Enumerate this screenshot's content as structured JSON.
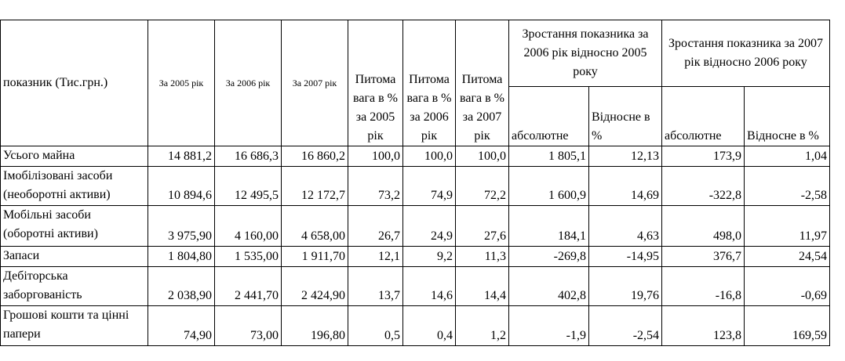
{
  "table": {
    "header": {
      "indicator": "показник (Тис.грн.)",
      "columns": [
        "За 2005 рік",
        "За 2006 рік",
        "За 2007 рік",
        "Питома вага в % за 2005 рік",
        "Питома вага в % за 2006 рік",
        "Питома вага в % за 2007 рік"
      ],
      "groups": [
        {
          "title": "Зростання показника за 2006 рік відносно 2005 року",
          "sub": [
            "абсолютне",
            "Відносне в %"
          ]
        },
        {
          "title": "Зростання показника за 2007 рік відносно 2006 року",
          "sub": [
            "абсолютне",
            "Відносне в %"
          ]
        }
      ]
    },
    "rows": [
      [
        "Усього майна",
        "14 881,2",
        "16 686,3",
        "16 860,2",
        "100,0",
        "100,0",
        "100,0",
        "1 805,1",
        "12,13",
        "173,9",
        "1,04"
      ],
      [
        "Імобілізовані засоби (необоротні активи)",
        "10 894,6",
        "12 495,5",
        "12 172,7",
        "73,2",
        "74,9",
        "72,2",
        "1 600,9",
        "14,69",
        "-322,8",
        "-2,58"
      ],
      [
        "Мобільні засоби (оборотні активи)",
        "3 975,90",
        "4 160,00",
        "4 658,00",
        "26,7",
        "24,9",
        "27,6",
        "184,1",
        "4,63",
        "498,0",
        "11,97"
      ],
      [
        "Запаси",
        "1 804,80",
        "1 535,00",
        "1 911,70",
        "12,1",
        "9,2",
        "11,3",
        "-269,8",
        "-14,95",
        "376,7",
        "24,54"
      ],
      [
        "Дебіторська заборгованість",
        "2 038,90",
        "2 441,70",
        "2 424,90",
        "13,7",
        "14,6",
        "14,4",
        "402,8",
        "19,76",
        "-16,8",
        "-0,69"
      ],
      [
        "Грошові кошти та цінні папери",
        "74,90",
        "73,00",
        "196,80",
        "0,5",
        "0,4",
        "1,2",
        "-1,9",
        "-2,54",
        "123,8",
        "169,59"
      ]
    ]
  }
}
